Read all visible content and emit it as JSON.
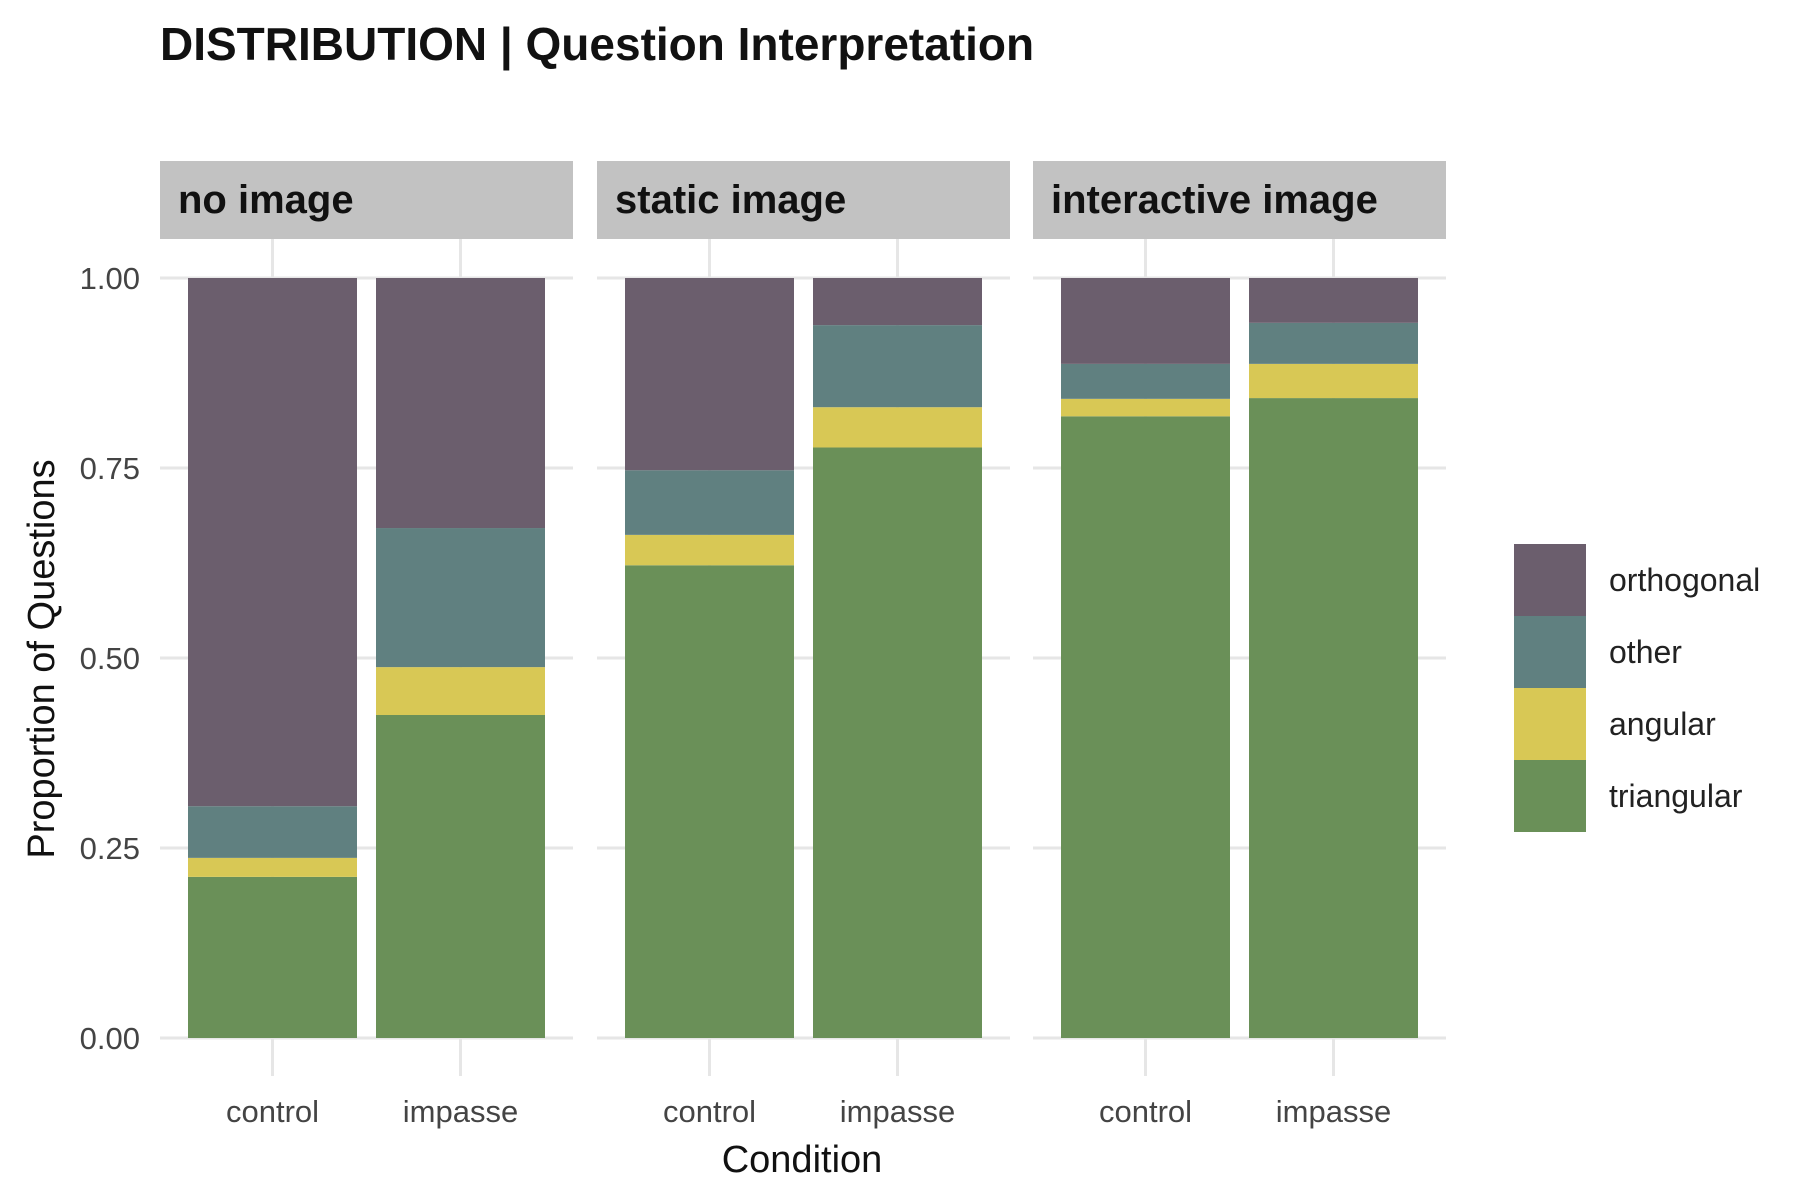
{
  "chart_data": {
    "type": "bar",
    "stacked": true,
    "title": "DISTRIBUTION | Question Interpretation",
    "xlabel": "Condition",
    "ylabel": "Proportion of Questions",
    "ylim": [
      0,
      1
    ],
    "yticks": [
      "0.00",
      "0.25",
      "0.50",
      "0.75",
      "1.00"
    ],
    "grid": true,
    "legend_position": "right",
    "categories": [
      "control",
      "impasse"
    ],
    "stack_order": [
      "triangular",
      "angular",
      "other",
      "orthogonal"
    ],
    "legend": [
      "orthogonal",
      "other",
      "angular",
      "triangular"
    ],
    "colors": {
      "orthogonal": "#6b5e6d",
      "other": "#608080",
      "angular": "#d8c855",
      "triangular": "#6a9058"
    },
    "facets": [
      {
        "label": "no image",
        "bars": [
          {
            "category": "control",
            "triangular": 0.212,
            "angular": 0.025,
            "other": 0.068,
            "orthogonal": 0.695
          },
          {
            "category": "impasse",
            "triangular": 0.425,
            "angular": 0.063,
            "other": 0.183,
            "orthogonal": 0.329
          }
        ]
      },
      {
        "label": "static image",
        "bars": [
          {
            "category": "control",
            "triangular": 0.622,
            "angular": 0.04,
            "other": 0.085,
            "orthogonal": 0.253
          },
          {
            "category": "impasse",
            "triangular": 0.777,
            "angular": 0.053,
            "other": 0.108,
            "orthogonal": 0.062
          }
        ]
      },
      {
        "label": "interactive image",
        "bars": [
          {
            "category": "control",
            "triangular": 0.818,
            "angular": 0.023,
            "other": 0.046,
            "orthogonal": 0.113
          },
          {
            "category": "impasse",
            "triangular": 0.842,
            "angular": 0.045,
            "other": 0.054,
            "orthogonal": 0.059
          }
        ]
      }
    ]
  }
}
